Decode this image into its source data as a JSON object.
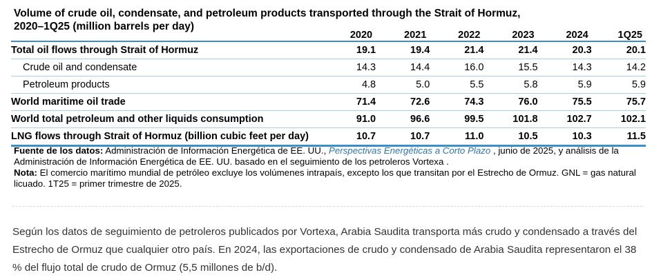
{
  "title": "Volume of crude oil, condensate, and petroleum products transported through the Strait of Hormuz, 2020–1Q25 (million barrels per day)",
  "table": {
    "years": [
      "2020",
      "2021",
      "2022",
      "2023",
      "2024",
      "1Q25"
    ],
    "rows": [
      {
        "label": "Total oil flows through Strait of Hormuz",
        "values": [
          "19.1",
          "19.4",
          "21.4",
          "21.4",
          "20.3",
          "20.1"
        ]
      },
      {
        "label": "Crude oil and condensate",
        "values": [
          "14.3",
          "14.4",
          "16.0",
          "15.5",
          "14.3",
          "14.2"
        ]
      },
      {
        "label": "Petroleum products",
        "values": [
          "4.8",
          "5.0",
          "5.5",
          "5.8",
          "5.9",
          "5.9"
        ]
      },
      {
        "label": "World maritime oil trade",
        "values": [
          "71.4",
          "72.6",
          "74.3",
          "76.0",
          "75.5",
          "75.7"
        ]
      },
      {
        "label": "World total petroleum and other liquids consumption",
        "values": [
          "91.0",
          "96.6",
          "99.5",
          "101.8",
          "102.7",
          "102.1"
        ]
      },
      {
        "label": "LNG flows through Strait of Hormuz (billion cubic feet per day)",
        "values": [
          "10.7",
          "10.7",
          "11.0",
          "10.5",
          "10.3",
          "11.5"
        ]
      }
    ]
  },
  "notes": {
    "source_label": "Fuente de los datos:",
    "source_text_1": " Administración de Información Energética de EE. UU., ",
    "source_link": "Perspectivas Energéticas a Corto Plazo",
    "source_text_2": " , junio de 2025, y análisis de la Administración de Información Energética de EE. UU. basado en el seguimiento de los petroleros Vortexa .",
    "note_label": "Nota:",
    "note_text": " El comercio marítimo mundial de petróleo excluye los volúmenes intrapaís, excepto los que transitan por el Estrecho de Ormuz. GNL = gas natural licuado. 1T25 = primer trimestre de 2025."
  },
  "paragraph": "Según los datos de seguimiento de petroleros publicados por Vortexa, Arabia Saudita transporta más crudo y condensado a través del Estrecho de Ormuz que cualquier otro país. En 2024, las exportaciones de crudo y condensado de Arabia Saudita representaron el 38 % del flujo total de crudo de Ormuz (5,5 millones de b/d)."
}
